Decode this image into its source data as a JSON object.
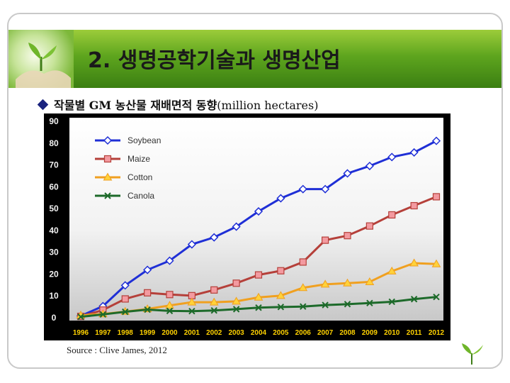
{
  "slide": {
    "title": "2. 생명공학기술과 생명산업",
    "bullet_prefix": "작물별 GM 농산물 재배면적 동향",
    "bullet_unit": "(million hectares)",
    "source": "Source : Clive James, 2012"
  },
  "colors": {
    "banner_green": "#5ea51e",
    "chart_bg_top": "#ffffff",
    "chart_bg_bottom": "#cfcfcf",
    "axis_text": "#f2f2f2",
    "x_axis_text": "#ffd200"
  },
  "chart_data": {
    "type": "line",
    "title": "",
    "xlabel": "",
    "ylabel": "",
    "categories": [
      "1996",
      "1997",
      "1998",
      "1999",
      "2000",
      "2001",
      "2002",
      "2003",
      "2004",
      "2005",
      "2006",
      "2007",
      "2008",
      "2009",
      "2010",
      "2011",
      "2012"
    ],
    "ylim": [
      0,
      90
    ],
    "yticks": [
      0,
      10,
      20,
      30,
      40,
      50,
      60,
      70,
      80,
      90
    ],
    "grid": false,
    "legend_position": "top-left",
    "series": [
      {
        "name": "Soybean",
        "color": "#1f2fd6",
        "marker": "diamond",
        "values": [
          0.5,
          5,
          14.5,
          21.6,
          25.8,
          33.3,
          36.5,
          41.4,
          48.4,
          54.4,
          58.6,
          58.6,
          65.8,
          69.2,
          73.3,
          75.4,
          80.7
        ]
      },
      {
        "name": "Maize",
        "color": "#b5403a",
        "marker": "square",
        "values": [
          0.3,
          3.2,
          8.3,
          11.1,
          10.3,
          9.8,
          12.4,
          15.5,
          19.3,
          21.2,
          25.2,
          35.2,
          37.3,
          41.7,
          46.8,
          51,
          55.1
        ]
      },
      {
        "name": "Cotton",
        "color": "#f0a020",
        "marker": "triangle",
        "values": [
          0.8,
          1.4,
          2.5,
          3.7,
          5.3,
          6.8,
          6.8,
          7.2,
          9,
          9.8,
          13.4,
          15,
          15.5,
          16.1,
          21,
          24.7,
          24.3
        ]
      },
      {
        "name": "Canola",
        "color": "#1d6a2a",
        "marker": "x",
        "values": [
          0.1,
          1.2,
          2.4,
          3.4,
          2.8,
          2.7,
          3,
          3.6,
          4.3,
          4.6,
          4.8,
          5.5,
          5.9,
          6.4,
          7,
          8.2,
          9.2
        ]
      }
    ]
  }
}
